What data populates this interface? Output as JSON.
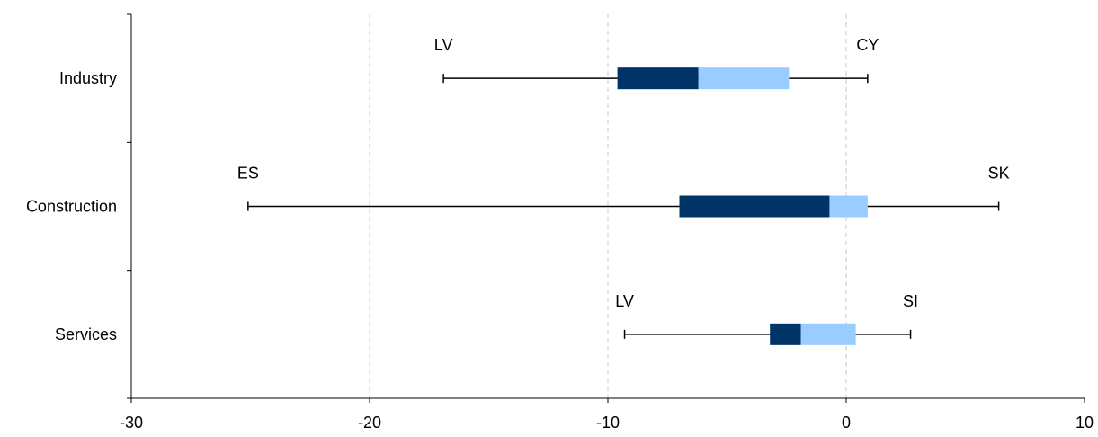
{
  "chart_data": {
    "type": "box",
    "orientation": "horizontal",
    "title": "",
    "xlabel": "",
    "ylabel": "",
    "xlim": [
      -30,
      10
    ],
    "x_ticks": [
      -30,
      -20,
      -10,
      0,
      10
    ],
    "x_tick_labels": [
      "-30",
      "-20",
      "-10",
      "0",
      "10"
    ],
    "grid": "vertical dashed",
    "legend": "none",
    "colors": {
      "lower_box": "#003366",
      "upper_box": "#99CCFF",
      "whisker": "#000000",
      "grid": "#C8C8C8"
    },
    "categories": [
      {
        "label": "Industry",
        "min": -16.9,
        "q1": -9.6,
        "median": -6.2,
        "q3": -2.4,
        "max": 0.9,
        "min_label": "LV",
        "max_label": "CY"
      },
      {
        "label": "Construction",
        "min": -25.1,
        "q1": -7.0,
        "median": -0.7,
        "q3": 0.9,
        "max": 6.4,
        "min_label": "ES",
        "max_label": "SK"
      },
      {
        "label": "Services",
        "min": -9.3,
        "q1": -3.2,
        "median": -1.9,
        "q3": 0.4,
        "max": 2.7,
        "min_label": "LV",
        "max_label": "SI"
      }
    ]
  }
}
